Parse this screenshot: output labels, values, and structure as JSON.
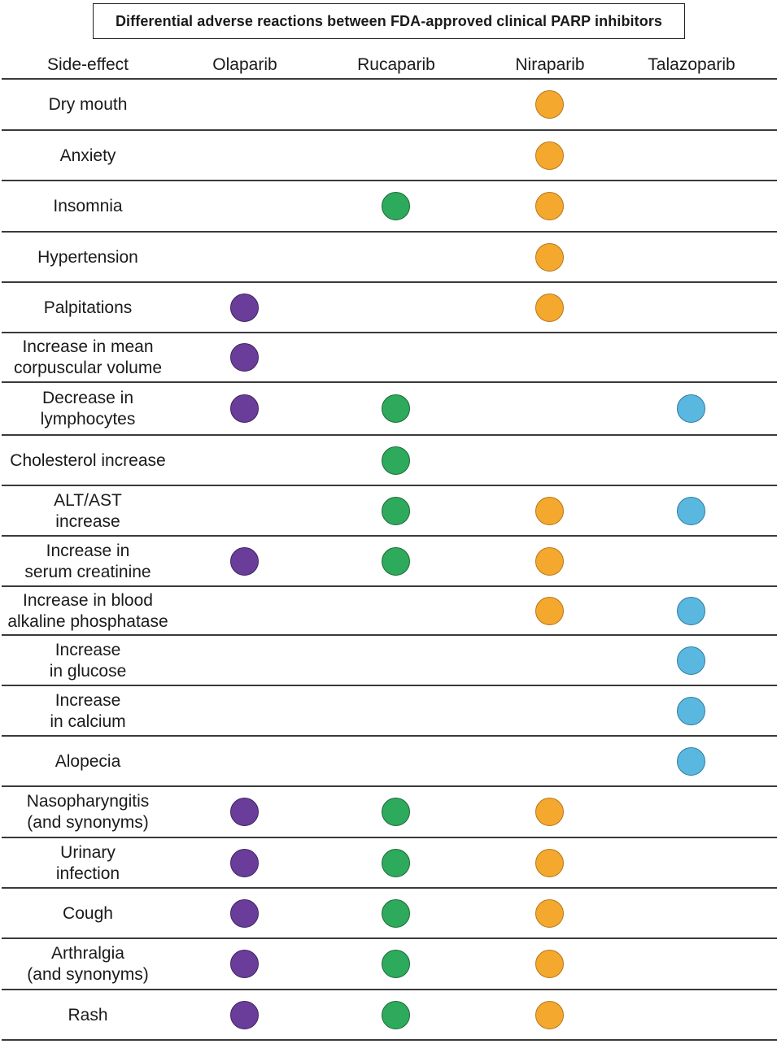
{
  "title": "Differential adverse reactions between FDA-approved clinical PARP inhibitors",
  "columns": {
    "side_effect": "Side-effect",
    "drugs": [
      {
        "key": "olaparib",
        "label": "Olaparib",
        "color": "#6a3d9a"
      },
      {
        "key": "rucaparib",
        "label": "Rucaparib",
        "color": "#2eaa5c"
      },
      {
        "key": "niraparib",
        "label": "Niraparib",
        "color": "#f5a82e"
      },
      {
        "key": "talazoparib",
        "label": "Talazoparib",
        "color": "#5ab8e0"
      }
    ]
  },
  "rows": [
    {
      "label": "Dry mouth",
      "drugs": [
        "niraparib"
      ]
    },
    {
      "label": "Anxiety",
      "drugs": [
        "niraparib"
      ]
    },
    {
      "label": "Insomnia",
      "drugs": [
        "rucaparib",
        "niraparib"
      ]
    },
    {
      "label": "Hypertension",
      "drugs": [
        "niraparib"
      ]
    },
    {
      "label": "Palpitations",
      "drugs": [
        "olaparib",
        "niraparib"
      ]
    },
    {
      "label": "Increase in mean\ncorpuscular volume",
      "drugs": [
        "olaparib"
      ]
    },
    {
      "label": "Decrease in\nlymphocytes",
      "drugs": [
        "olaparib",
        "rucaparib",
        "talazoparib"
      ]
    },
    {
      "label": "Cholesterol increase",
      "drugs": [
        "rucaparib"
      ]
    },
    {
      "label": "ALT/AST\nincrease",
      "drugs": [
        "rucaparib",
        "niraparib",
        "talazoparib"
      ]
    },
    {
      "label": "Increase in\nserum creatinine",
      "drugs": [
        "olaparib",
        "rucaparib",
        "niraparib"
      ]
    },
    {
      "label": "Increase in blood\nalkaline phosphatase",
      "drugs": [
        "niraparib",
        "talazoparib"
      ]
    },
    {
      "label": "Increase\nin glucose",
      "drugs": [
        "talazoparib"
      ]
    },
    {
      "label": "Increase\nin calcium",
      "drugs": [
        "talazoparib"
      ]
    },
    {
      "label": "Alopecia",
      "drugs": [
        "talazoparib"
      ]
    },
    {
      "label": "Nasopharyngitis\n(and synonyms)",
      "drugs": [
        "olaparib",
        "rucaparib",
        "niraparib"
      ]
    },
    {
      "label": "Urinary\ninfection",
      "drugs": [
        "olaparib",
        "rucaparib",
        "niraparib"
      ]
    },
    {
      "label": "Cough",
      "drugs": [
        "olaparib",
        "rucaparib",
        "niraparib"
      ]
    },
    {
      "label": "Arthralgia\n(and synonyms)",
      "drugs": [
        "olaparib",
        "rucaparib",
        "niraparib"
      ]
    },
    {
      "label": "Rash",
      "drugs": [
        "olaparib",
        "rucaparib",
        "niraparib"
      ]
    }
  ]
}
